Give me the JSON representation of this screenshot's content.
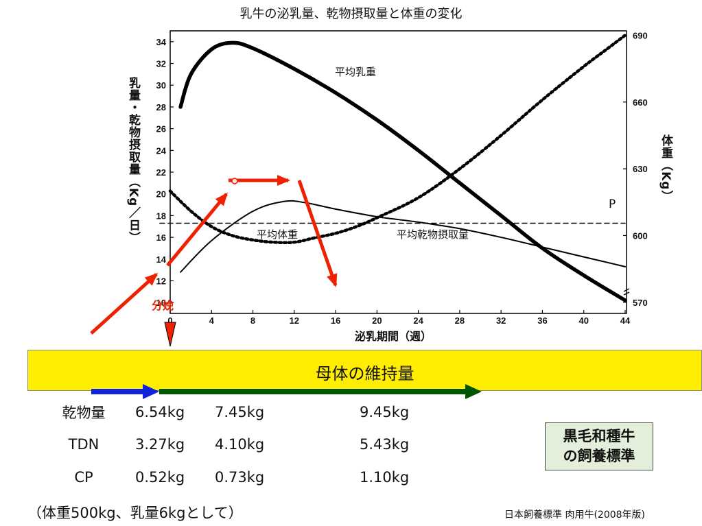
{
  "chart_data": {
    "type": "line",
    "title": "乳牛の泌乳量、乾物摂取量と体重の変化",
    "xlabel": "泌乳期間（週）",
    "ylabel_left": "乳量・乾物摂取量（Kg／日）",
    "ylabel_right": "体重（Kg）",
    "xlim": [
      0,
      44
    ],
    "ylim_left": [
      9,
      35
    ],
    "ylim_right": [
      565,
      692
    ],
    "x_ticks": [
      0,
      4,
      8,
      12,
      16,
      20,
      24,
      28,
      32,
      36,
      40,
      44
    ],
    "y_left_ticks": [
      10,
      12,
      14,
      16,
      18,
      20,
      22,
      24,
      26,
      28,
      30,
      32,
      34
    ],
    "y_right_ticks": [
      570,
      600,
      630,
      660,
      690
    ],
    "series": [
      {
        "name": "平均乳重",
        "axis": "left",
        "style": "thick",
        "x": [
          1,
          2,
          4,
          6,
          8,
          12,
          16,
          20,
          24,
          28,
          32,
          36,
          40,
          44
        ],
        "y": [
          28,
          31,
          33.3,
          33.9,
          33.4,
          31.5,
          29.3,
          26.8,
          24,
          21,
          18,
          15,
          12.5,
          10.2
        ]
      },
      {
        "name": "平均乾物摂取量",
        "axis": "left",
        "style": "thin",
        "x": [
          1,
          4,
          8,
          11,
          13,
          16,
          20,
          24,
          28,
          32,
          36,
          40,
          44
        ],
        "y": [
          12.8,
          15.7,
          18.4,
          19.3,
          19.2,
          18.6,
          17.9,
          17.4,
          16.8,
          16.0,
          15.1,
          14.2,
          13.3
        ]
      },
      {
        "name": "平均体重",
        "axis": "right",
        "style": "dotted",
        "x": [
          0,
          2,
          4,
          6,
          8,
          10,
          12,
          14,
          16,
          18,
          20,
          24,
          28,
          32,
          36,
          40,
          42,
          44
        ],
        "y": [
          620,
          611,
          604,
          600,
          598,
          597,
          597,
          599,
          601,
          604,
          608,
          617,
          630,
          645,
          661,
          676,
          683,
          690
        ]
      },
      {
        "name": "P",
        "axis": "left",
        "style": "dashed",
        "x": [
          -1,
          44
        ],
        "y": [
          17.3,
          17.3
        ]
      }
    ],
    "annotations": [
      "分娩"
    ]
  },
  "band": {
    "text": "母体の維持量"
  },
  "requirements": {
    "rows": [
      {
        "label": "乾物量",
        "values": [
          "6.54kg",
          "7.45kg",
          "9.45kg"
        ]
      },
      {
        "label": "TDN",
        "values": [
          "3.27kg",
          "4.10kg",
          "5.43kg"
        ]
      },
      {
        "label": "CP",
        "values": [
          "0.52kg",
          "0.73kg",
          "1.10kg"
        ]
      }
    ]
  },
  "note_box": {
    "line1": "黒毛和種牛",
    "line2": "の飼養標準"
  },
  "footnote": "（体重500kg、乳量6kgとして）",
  "source": "日本飼養標準 肉用牛(2008年版)",
  "colors": {
    "arrow_red": "#ee2200",
    "band": "#ffee00",
    "arrow_blue": "#1122dd",
    "arrow_green": "#005500",
    "note_bg": "#e3eedb"
  }
}
